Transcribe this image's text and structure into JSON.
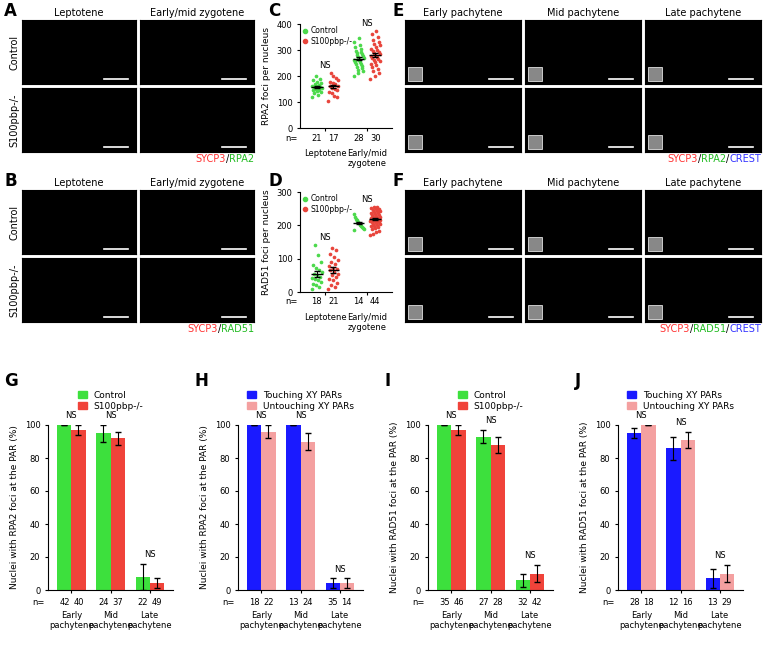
{
  "chart_data": [
    {
      "panel": "C",
      "type": "strip",
      "categories": [
        "Leptotene",
        "Early/mid zygotene"
      ],
      "ylabel": "RPA2 foci per nucleus",
      "ylim": [
        0,
        400
      ],
      "yticks": [
        0,
        100,
        200,
        300,
        400
      ],
      "legend": "upper left",
      "n_label": "n=",
      "annotations": [
        "NS",
        "NS"
      ],
      "series": [
        {
          "name": "Control",
          "color": "#4cd94c",
          "values": [
            [
              120,
              128,
              135,
              140,
              142,
              145,
              148,
              150,
              152,
              155,
              156,
              158,
              160,
              162,
              165,
              168,
              172,
              178,
              185,
              190,
              200
            ],
            [
              200,
              210,
              218,
              225,
              230,
              235,
              240,
              245,
              248,
              252,
              255,
              258,
              260,
              263,
              266,
              270,
              273,
              276,
              280,
              284,
              288,
              292,
              298,
              305,
              312,
              320,
              330,
              345
            ]
          ],
          "mean": [
            157,
            267
          ],
          "error": [
            5,
            6
          ],
          "n": [
            21,
            28
          ]
        },
        {
          "name": "S100pbp-/-",
          "color": "#e8453c",
          "values": [
            [
              105,
              118,
              125,
              135,
              140,
              145,
              150,
              155,
              160,
              163,
              168,
              172,
              178,
              185,
              192,
              200,
              210
            ],
            [
              190,
              200,
              212,
              220,
              228,
              235,
              242,
              248,
              252,
              256,
              260,
              264,
              268,
              272,
              276,
              280,
              284,
              288,
              292,
              296,
              300,
              305,
              310,
              318,
              325,
              332,
              340,
              350,
              360,
              372
            ]
          ],
          "mean": [
            160,
            280
          ],
          "error": [
            7,
            8
          ],
          "n": [
            17,
            30
          ]
        }
      ]
    },
    {
      "panel": "D",
      "type": "strip",
      "categories": [
        "Leptotene",
        "Early/mid zygotene"
      ],
      "ylabel": "RAD51 foci per nucleus",
      "ylim": [
        0,
        300
      ],
      "yticks": [
        0,
        100,
        200,
        300
      ],
      "legend": "upper left",
      "n_label": "n=",
      "annotations": [
        "NS",
        "NS"
      ],
      "series": [
        {
          "name": "Control",
          "color": "#4cd94c",
          "values": [
            [
              10,
              15,
              20,
              25,
              30,
              35,
              38,
              42,
              45,
              50,
              55,
              60,
              65,
              72,
              80,
              90,
              110,
              140
            ],
            [
              185,
              190,
              193,
              196,
              199,
              202,
              204,
              206,
              209,
              212,
              215,
              220,
              226,
              235
            ]
          ],
          "mean": [
            54,
            207
          ],
          "error": [
            8,
            4
          ],
          "n": [
            18,
            14
          ]
        },
        {
          "name": "S100pbp-/-",
          "color": "#e8453c",
          "values": [
            [
              10,
              15,
              22,
              28,
              35,
              40,
              45,
              50,
              55,
              60,
              65,
              68,
              72,
              78,
              85,
              90,
              95,
              105,
              115,
              125,
              132
            ],
            [
              170,
              175,
              180,
              184,
              188,
              191,
              194,
              197,
              199,
              201,
              203,
              205,
              207,
              209,
              210,
              212,
              213,
              214,
              215,
              216,
              217,
              218,
              219,
              220,
              221,
              222,
              223,
              224,
              226,
              228,
              230,
              232,
              234,
              236,
              238,
              240,
              242,
              244,
              246,
              248,
              250,
              252,
              254,
              256
            ]
          ],
          "mean": [
            66,
            218
          ],
          "error": [
            8,
            3
          ],
          "n": [
            21,
            44
          ]
        }
      ]
    },
    {
      "panel": "G",
      "type": "bar",
      "categories": [
        "Early pachytene",
        "Mid pachytene",
        "Late pachytene"
      ],
      "ylabel": "Nuclei with RPA2 foci at the PAR (%)",
      "ylim": [
        0,
        100
      ],
      "yticks": [
        0,
        20,
        40,
        60,
        80,
        100
      ],
      "legend": "top",
      "n_label": "n=",
      "annotations": [
        "NS",
        "NS",
        "NS"
      ],
      "series": [
        {
          "name": "Control",
          "color": "#3de03d",
          "values": [
            100,
            95,
            8
          ],
          "error": [
            0,
            5,
            8
          ],
          "n": [
            42,
            24,
            22
          ]
        },
        {
          "name": "S100pbp-/-",
          "color": "#f0433a",
          "values": [
            97,
            92,
            4
          ],
          "error": [
            3,
            4,
            3
          ],
          "n": [
            40,
            37,
            49
          ]
        }
      ]
    },
    {
      "panel": "H",
      "type": "bar",
      "categories": [
        "Early pachytene",
        "Mid pachytene",
        "Late pachytene"
      ],
      "ylabel": "Nuclei with RPA2 foci at the PAR (%)",
      "ylim": [
        0,
        100
      ],
      "yticks": [
        0,
        20,
        40,
        60,
        80,
        100
      ],
      "legend": "top",
      "n_label": "n=",
      "annotations": [
        "NS",
        "NS",
        "NS"
      ],
      "series": [
        {
          "name": "Touching XY PARs",
          "color": "#1a1aff",
          "values": [
            100,
            100,
            4
          ],
          "error": [
            0,
            0,
            3
          ],
          "n": [
            18,
            13,
            35
          ]
        },
        {
          "name": "Untouching XY PARs",
          "color": "#f4a0a0",
          "values": [
            96,
            90,
            4
          ],
          "error": [
            4,
            5,
            3
          ],
          "n": [
            22,
            24,
            14
          ]
        }
      ]
    },
    {
      "panel": "I",
      "type": "bar",
      "categories": [
        "Early pachytene",
        "Mid pachytene",
        "Late pachytene"
      ],
      "ylabel": "Nuclei with RAD51 foci at the PAR (%)",
      "ylim": [
        0,
        100
      ],
      "yticks": [
        0,
        20,
        40,
        60,
        80,
        100
      ],
      "legend": "top",
      "n_label": "n=",
      "annotations": [
        "NS",
        "NS",
        "NS"
      ],
      "series": [
        {
          "name": "Control",
          "color": "#3de03d",
          "values": [
            100,
            93,
            6
          ],
          "error": [
            0,
            4,
            4
          ],
          "n": [
            35,
            27,
            32
          ]
        },
        {
          "name": "S100pbp-/-",
          "color": "#f0433a",
          "values": [
            97,
            88,
            10
          ],
          "error": [
            3,
            5,
            5
          ],
          "n": [
            46,
            28,
            42
          ]
        }
      ]
    },
    {
      "panel": "J",
      "type": "bar",
      "categories": [
        "Early pachytene",
        "Mid pachytene",
        "Late pachytene"
      ],
      "ylabel": "Nuclei with RAD51 foci at the PAR (%)",
      "ylim": [
        0,
        100
      ],
      "yticks": [
        0,
        20,
        40,
        60,
        80,
        100
      ],
      "legend": "top",
      "n_label": "n=",
      "annotations": [
        "NS",
        "NS",
        "NS"
      ],
      "series": [
        {
          "name": "Touching XY PARs",
          "color": "#1a1aff",
          "values": [
            95,
            86,
            7
          ],
          "error": [
            3,
            7,
            6
          ],
          "n": [
            28,
            12,
            13
          ]
        },
        {
          "name": "Untouching XY PARs",
          "color": "#f4a0a0",
          "values": [
            100,
            91,
            10
          ],
          "error": [
            0,
            5,
            5
          ],
          "n": [
            18,
            16,
            29
          ]
        }
      ]
    }
  ],
  "images": [
    {
      "panel": "A",
      "type": "image",
      "columns": [
        "Leptotene",
        "Early/mid zygotene"
      ],
      "rows": [
        "Control",
        "S100pbp-/-"
      ],
      "stain": [
        {
          "text": "SYCP3",
          "color": "#ff3333"
        },
        {
          "text": "/",
          "color": "#000000"
        },
        {
          "text": "RPA2",
          "color": "#22bb22"
        }
      ]
    },
    {
      "panel": "B",
      "type": "image",
      "columns": [
        "Leptotene",
        "Early/mid zygotene"
      ],
      "rows": [
        "Control",
        "S100pbp-/-"
      ],
      "stain": [
        {
          "text": "SYCP3",
          "color": "#ff3333"
        },
        {
          "text": "/",
          "color": "#000000"
        },
        {
          "text": "RAD51",
          "color": "#22bb22"
        }
      ]
    },
    {
      "panel": "E",
      "type": "image",
      "columns": [
        "Early pachytene",
        "Mid pachytene",
        "Late pachytene"
      ],
      "stain": [
        {
          "text": "SYCP3",
          "color": "#ff3333"
        },
        {
          "text": "/",
          "color": "#000000"
        },
        {
          "text": "RPA2",
          "color": "#22bb22"
        },
        {
          "text": "/",
          "color": "#000000"
        },
        {
          "text": "CREST",
          "color": "#3333ff"
        }
      ]
    },
    {
      "panel": "F",
      "type": "image",
      "columns": [
        "Early pachytene",
        "Mid pachytene",
        "Late pachytene"
      ],
      "stain": [
        {
          "text": "SYCP3",
          "color": "#ff3333"
        },
        {
          "text": "/",
          "color": "#000000"
        },
        {
          "text": "RAD51",
          "color": "#22bb22"
        },
        {
          "text": "/",
          "color": "#000000"
        },
        {
          "text": "CREST",
          "color": "#3333ff"
        }
      ]
    }
  ]
}
